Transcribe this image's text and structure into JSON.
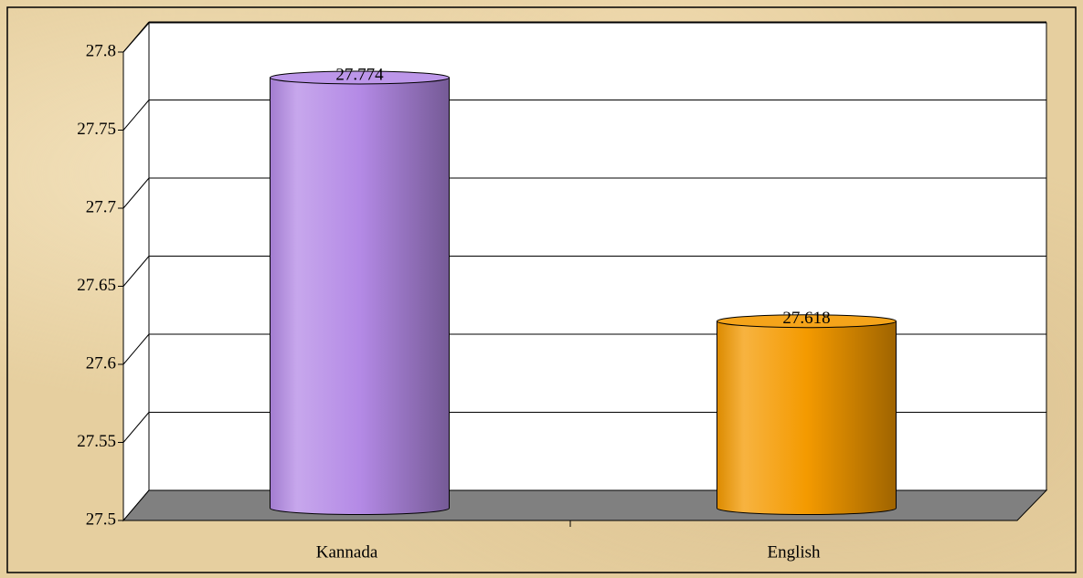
{
  "chart_data": {
    "type": "bar",
    "style": "3d-cylinder",
    "categories": [
      "Kannada",
      "English"
    ],
    "values": [
      27.774,
      27.618
    ],
    "colors": [
      "#b48ae6",
      "#f49a00"
    ],
    "ylim": [
      27.5,
      27.8
    ],
    "yticks": [
      27.5,
      27.55,
      27.6,
      27.65,
      27.7,
      27.75,
      27.8
    ],
    "grid": true
  }
}
